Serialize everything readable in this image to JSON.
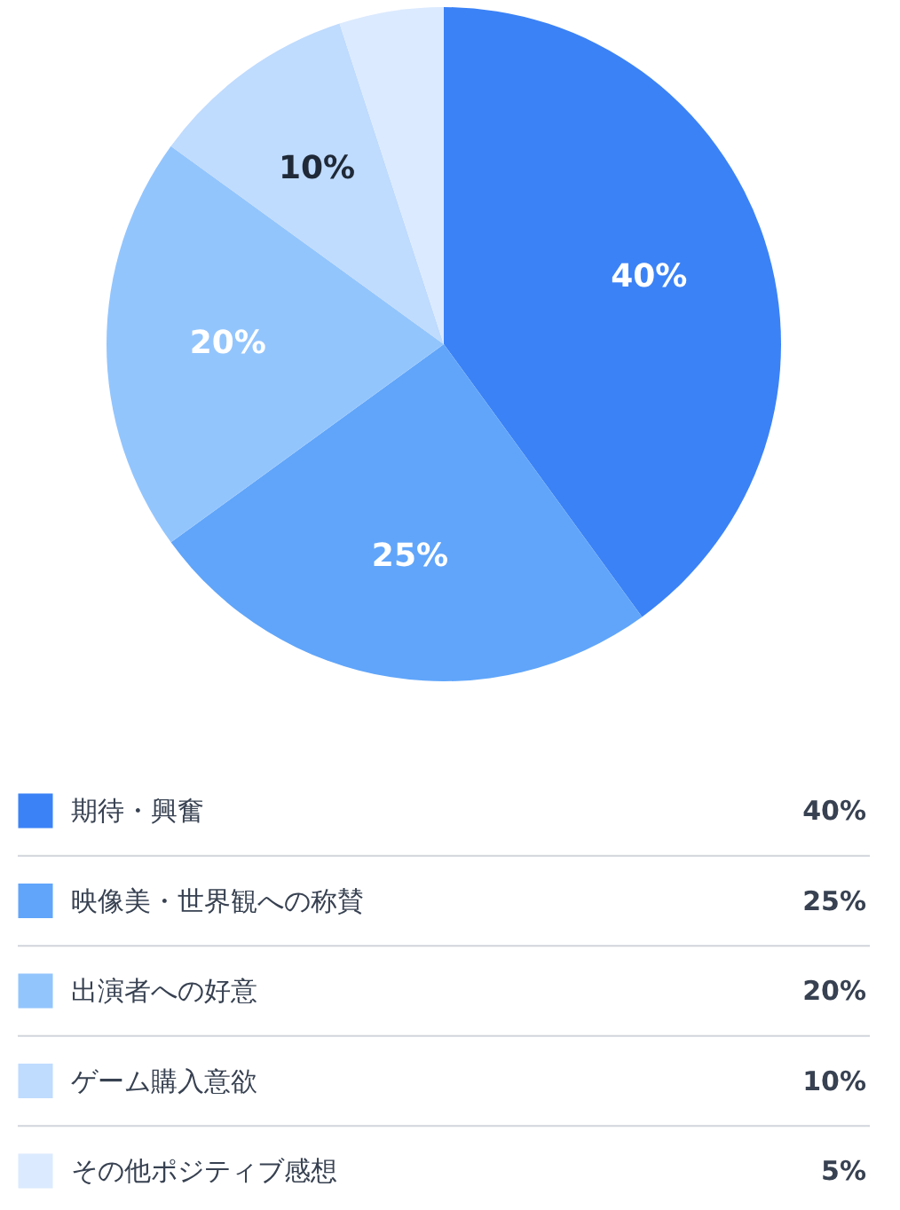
{
  "chart_data": {
    "type": "pie",
    "categories": [
      "期待・興奮",
      "映像美・世界観への称賛",
      "出演者への好意",
      "ゲーム購入意欲",
      "その他ポジティブ感想"
    ],
    "values": [
      40,
      25,
      20,
      10,
      5
    ],
    "colors": [
      "#3b82f6",
      "#60a5fa",
      "#93c5fd",
      "#bfdbfe",
      "#dbeafe"
    ],
    "value_labels": [
      "40%",
      "25%",
      "20%",
      "10%",
      "5%"
    ],
    "legend": "bottom"
  }
}
